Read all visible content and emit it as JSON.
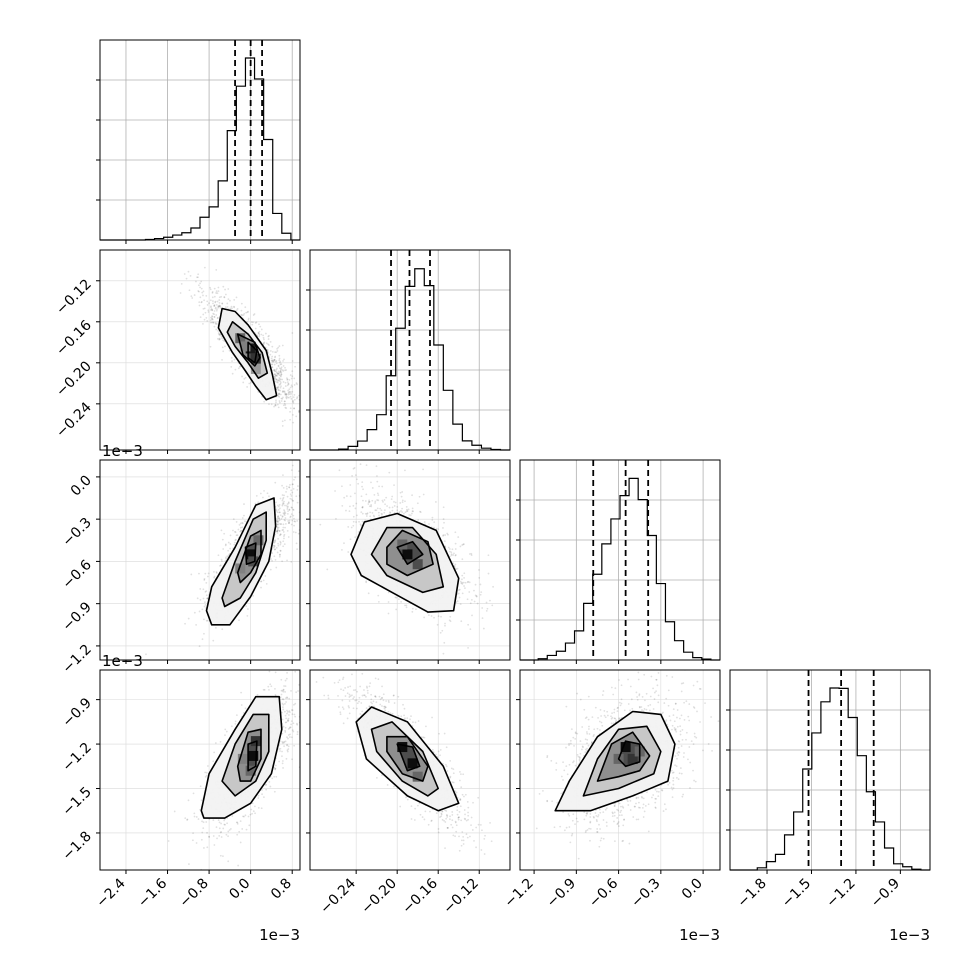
{
  "chart_data": {
    "type": "corner",
    "parameters": [
      {
        "range": [
          -2.9,
          0.95
        ],
        "ticks": [
          -2.4,
          -1.6,
          -0.8,
          0.0,
          0.8
        ],
        "tick_labels": [
          "−2.4",
          "−1.6",
          "−0.8",
          "0.0",
          "0.8"
        ],
        "offset_label": "1e−3"
      },
      {
        "range": [
          -0.285,
          -0.09
        ],
        "ticks": [
          -0.24,
          -0.2,
          -0.16,
          -0.12
        ],
        "tick_labels": [
          "−0.24",
          "−0.20",
          "−0.16",
          "−0.12"
        ],
        "offset_label": ""
      },
      {
        "range": [
          -1.3,
          0.12
        ],
        "ticks": [
          -1.2,
          -0.9,
          -0.6,
          -0.3,
          0.0
        ],
        "tick_labels": [
          "−1.2",
          "−0.9",
          "−0.6",
          "−0.3",
          "0.0"
        ],
        "offset_label": "1e−3"
      },
      {
        "range": [
          -2.05,
          -0.7
        ],
        "ticks": [
          -1.8,
          -1.5,
          -1.2,
          -0.9
        ],
        "tick_labels": [
          "−1.8",
          "−1.5",
          "−1.2",
          "−0.9"
        ],
        "offset_label": "1e−3"
      }
    ],
    "y_offset_labels": [
      "1e−3",
      "1e−3"
    ],
    "quantiles": [
      [
        -0.3,
        0.0,
        0.22
      ],
      [
        -0.206,
        -0.188,
        -0.168
      ],
      [
        -0.78,
        -0.55,
        -0.39
      ],
      [
        -1.52,
        -1.3,
        -1.08
      ]
    ],
    "histograms": [
      [
        0,
        0,
        0,
        0,
        0,
        0.3,
        0.8,
        1.5,
        2.7,
        4.0,
        6.6,
        12.5,
        18.2,
        32.5,
        60.1,
        84.5,
        100,
        88.5,
        55.2,
        14.6,
        3.7,
        0
      ],
      [
        0,
        0,
        0,
        0.5,
        2.0,
        4.9,
        11.2,
        19.4,
        40.8,
        66.9,
        89.9,
        99.6,
        90.3,
        57.7,
        32.8,
        14.2,
        5.0,
        2.6,
        1.0,
        0.3,
        0
      ],
      [
        0,
        0,
        0.7,
        2.5,
        4.8,
        9.3,
        16.0,
        31.1,
        47.1,
        63.8,
        77.5,
        90.3,
        99.8,
        88.1,
        68.4,
        42.0,
        21.0,
        10.6,
        4.3,
        1.3,
        0.5,
        0
      ],
      [
        0,
        0,
        0,
        1.2,
        4.6,
        8.6,
        19.3,
        31.9,
        55.5,
        75.3,
        92.4,
        100,
        99.8,
        83.8,
        62.8,
        43.0,
        26.4,
        12.1,
        3.4,
        1.8,
        0.4,
        0
      ]
    ],
    "scatter": [
      {
        "x": 0,
        "y": 1,
        "mean": [
          0.0,
          -0.188
        ],
        "sd": [
          0.42,
          0.027
        ],
        "rho": -0.85,
        "contours": [
          [
            [
              -0.55,
              -0.147
            ],
            [
              -0.3,
              -0.15
            ],
            [
              -0.05,
              -0.163
            ],
            [
              0.3,
              -0.188
            ],
            [
              0.42,
              -0.212
            ],
            [
              0.5,
              -0.232
            ],
            [
              0.3,
              -0.236
            ],
            [
              0.1,
              -0.223
            ],
            [
              -0.1,
              -0.208
            ],
            [
              -0.35,
              -0.19
            ],
            [
              -0.62,
              -0.166
            ]
          ],
          [
            [
              -0.35,
              -0.16
            ],
            [
              -0.05,
              -0.172
            ],
            [
              0.22,
              -0.19
            ],
            [
              0.32,
              -0.21
            ],
            [
              0.15,
              -0.215
            ],
            [
              -0.05,
              -0.2
            ],
            [
              -0.3,
              -0.184
            ],
            [
              -0.45,
              -0.17
            ]
          ],
          [
            [
              -0.25,
              -0.172
            ],
            [
              0.08,
              -0.18
            ],
            [
              0.18,
              -0.195
            ],
            [
              0.08,
              -0.203
            ],
            [
              -0.15,
              -0.192
            ]
          ],
          [
            [
              -0.05,
              -0.18
            ],
            [
              0.12,
              -0.188
            ],
            [
              0.08,
              -0.2
            ],
            [
              -0.05,
              -0.195
            ]
          ]
        ],
        "cells": [
          [
            -0.2,
            -0.176,
            0.6
          ],
          [
            0.0,
            -0.186,
            0.9
          ],
          [
            0.1,
            -0.196,
            0.8
          ],
          [
            -0.1,
            -0.184,
            0.5
          ],
          [
            0.1,
            -0.206,
            0.4
          ]
        ]
      },
      {
        "x": 0,
        "y": 2,
        "mean": [
          0.0,
          -0.55
        ],
        "sd": [
          0.42,
          0.21
        ],
        "rho": 0.8,
        "contours": [
          [
            [
              -0.85,
              -0.95
            ],
            [
              -0.75,
              -0.78
            ],
            [
              -0.3,
              -0.5
            ],
            [
              0.1,
              -0.2
            ],
            [
              0.45,
              -0.15
            ],
            [
              0.48,
              -0.35
            ],
            [
              0.35,
              -0.6
            ],
            [
              0.0,
              -0.85
            ],
            [
              -0.4,
              -1.05
            ],
            [
              -0.75,
              -1.05
            ]
          ],
          [
            [
              -0.55,
              -0.86
            ],
            [
              -0.3,
              -0.6
            ],
            [
              0.05,
              -0.3
            ],
            [
              0.3,
              -0.25
            ],
            [
              0.3,
              -0.45
            ],
            [
              0.1,
              -0.68
            ],
            [
              -0.2,
              -0.86
            ],
            [
              -0.5,
              -0.92
            ]
          ],
          [
            [
              -0.25,
              -0.68
            ],
            [
              0.0,
              -0.42
            ],
            [
              0.2,
              -0.38
            ],
            [
              0.2,
              -0.55
            ],
            [
              0.0,
              -0.68
            ],
            [
              -0.2,
              -0.75
            ]
          ],
          [
            [
              -0.1,
              -0.5
            ],
            [
              0.1,
              -0.47
            ],
            [
              0.08,
              -0.6
            ],
            [
              -0.08,
              -0.62
            ]
          ]
        ],
        "cells": [
          [
            0.0,
            -0.55,
            0.95
          ],
          [
            -0.2,
            -0.65,
            0.5
          ],
          [
            0.15,
            -0.45,
            0.6
          ],
          [
            0.05,
            -0.6,
            0.7
          ]
        ]
      },
      {
        "x": 0,
        "y": 3,
        "mean": [
          0.0,
          -1.3
        ],
        "sd": [
          0.42,
          0.22
        ],
        "rho": 0.7,
        "contours": [
          [
            [
              -0.95,
              -1.65
            ],
            [
              -0.8,
              -1.4
            ],
            [
              -0.3,
              -1.1
            ],
            [
              0.1,
              -0.88
            ],
            [
              0.55,
              -0.88
            ],
            [
              0.6,
              -1.1
            ],
            [
              0.4,
              -1.4
            ],
            [
              0.0,
              -1.6
            ],
            [
              -0.5,
              -1.7
            ],
            [
              -0.9,
              -1.7
            ]
          ],
          [
            [
              -0.55,
              -1.45
            ],
            [
              -0.3,
              -1.2
            ],
            [
              0.05,
              -1.0
            ],
            [
              0.35,
              -1.0
            ],
            [
              0.35,
              -1.25
            ],
            [
              0.1,
              -1.45
            ],
            [
              -0.3,
              -1.55
            ]
          ],
          [
            [
              -0.25,
              -1.35
            ],
            [
              -0.05,
              -1.12
            ],
            [
              0.2,
              -1.1
            ],
            [
              0.2,
              -1.3
            ],
            [
              0.0,
              -1.45
            ],
            [
              -0.2,
              -1.45
            ]
          ],
          [
            [
              -0.05,
              -1.2
            ],
            [
              0.12,
              -1.18
            ],
            [
              0.1,
              -1.35
            ],
            [
              -0.05,
              -1.38
            ]
          ]
        ],
        "cells": [
          [
            0.05,
            -1.28,
            0.95
          ],
          [
            0.1,
            -1.18,
            0.8
          ],
          [
            0.0,
            -1.38,
            0.6
          ],
          [
            -0.15,
            -1.3,
            0.5
          ]
        ]
      },
      {
        "x": 1,
        "y": 2,
        "mean": [
          -0.188,
          -0.55
        ],
        "sd": [
          0.027,
          0.21
        ],
        "rho": -0.55,
        "contours": [
          [
            [
              -0.245,
              -0.55
            ],
            [
              -0.232,
              -0.32
            ],
            [
              -0.2,
              -0.26
            ],
            [
              -0.162,
              -0.38
            ],
            [
              -0.14,
              -0.72
            ],
            [
              -0.145,
              -0.95
            ],
            [
              -0.17,
              -0.96
            ],
            [
              -0.205,
              -0.82
            ],
            [
              -0.235,
              -0.7
            ]
          ],
          [
            [
              -0.225,
              -0.55
            ],
            [
              -0.21,
              -0.36
            ],
            [
              -0.185,
              -0.36
            ],
            [
              -0.162,
              -0.55
            ],
            [
              -0.155,
              -0.78
            ],
            [
              -0.175,
              -0.82
            ],
            [
              -0.21,
              -0.7
            ]
          ],
          [
            [
              -0.21,
              -0.5
            ],
            [
              -0.195,
              -0.38
            ],
            [
              -0.17,
              -0.46
            ],
            [
              -0.165,
              -0.62
            ],
            [
              -0.19,
              -0.7
            ],
            [
              -0.21,
              -0.62
            ]
          ],
          [
            [
              -0.2,
              -0.5
            ],
            [
              -0.185,
              -0.46
            ],
            [
              -0.175,
              -0.55
            ],
            [
              -0.19,
              -0.62
            ]
          ]
        ],
        "cells": [
          [
            -0.19,
            -0.55,
            0.95
          ],
          [
            -0.18,
            -0.62,
            0.7
          ],
          [
            -0.195,
            -0.48,
            0.6
          ]
        ]
      },
      {
        "x": 1,
        "y": 3,
        "mean": [
          -0.188,
          -1.3
        ],
        "sd": [
          0.027,
          0.22
        ],
        "rho": -0.85,
        "contours": [
          [
            [
              -0.24,
              -1.05
            ],
            [
              -0.225,
              -0.95
            ],
            [
              -0.19,
              -1.05
            ],
            [
              -0.155,
              -1.35
            ],
            [
              -0.14,
              -1.6
            ],
            [
              -0.16,
              -1.65
            ],
            [
              -0.19,
              -1.55
            ],
            [
              -0.23,
              -1.3
            ]
          ],
          [
            [
              -0.225,
              -1.1
            ],
            [
              -0.205,
              -1.05
            ],
            [
              -0.175,
              -1.25
            ],
            [
              -0.16,
              -1.5
            ],
            [
              -0.17,
              -1.55
            ],
            [
              -0.195,
              -1.45
            ],
            [
              -0.22,
              -1.25
            ]
          ],
          [
            [
              -0.21,
              -1.15
            ],
            [
              -0.19,
              -1.15
            ],
            [
              -0.17,
              -1.35
            ],
            [
              -0.175,
              -1.45
            ],
            [
              -0.195,
              -1.4
            ],
            [
              -0.21,
              -1.25
            ]
          ],
          [
            [
              -0.2,
              -1.2
            ],
            [
              -0.185,
              -1.22
            ],
            [
              -0.178,
              -1.35
            ],
            [
              -0.19,
              -1.38
            ]
          ]
        ],
        "cells": [
          [
            -0.195,
            -1.22,
            0.95
          ],
          [
            -0.185,
            -1.33,
            0.95
          ],
          [
            -0.18,
            -1.42,
            0.6
          ]
        ]
      },
      {
        "x": 2,
        "y": 3,
        "mean": [
          -0.55,
          -1.3
        ],
        "sd": [
          0.21,
          0.22
        ],
        "rho": 0.35,
        "contours": [
          [
            [
              -1.05,
              -1.65
            ],
            [
              -0.95,
              -1.45
            ],
            [
              -0.75,
              -1.15
            ],
            [
              -0.5,
              -0.98
            ],
            [
              -0.3,
              -1.0
            ],
            [
              -0.2,
              -1.2
            ],
            [
              -0.25,
              -1.45
            ],
            [
              -0.5,
              -1.55
            ],
            [
              -0.8,
              -1.65
            ]
          ],
          [
            [
              -0.85,
              -1.55
            ],
            [
              -0.75,
              -1.3
            ],
            [
              -0.6,
              -1.1
            ],
            [
              -0.4,
              -1.08
            ],
            [
              -0.3,
              -1.25
            ],
            [
              -0.35,
              -1.4
            ],
            [
              -0.6,
              -1.5
            ]
          ],
          [
            [
              -0.75,
              -1.45
            ],
            [
              -0.65,
              -1.2
            ],
            [
              -0.5,
              -1.12
            ],
            [
              -0.38,
              -1.28
            ],
            [
              -0.45,
              -1.38
            ],
            [
              -0.6,
              -1.42
            ]
          ],
          [
            [
              -0.6,
              -1.3
            ],
            [
              -0.55,
              -1.18
            ],
            [
              -0.45,
              -1.2
            ],
            [
              -0.45,
              -1.32
            ],
            [
              -0.55,
              -1.35
            ]
          ]
        ],
        "cells": [
          [
            -0.55,
            -1.22,
            0.95
          ],
          [
            -0.5,
            -1.3,
            0.8
          ],
          [
            -0.6,
            -1.3,
            0.6
          ],
          [
            -0.45,
            -1.25,
            0.6
          ]
        ]
      }
    ]
  }
}
